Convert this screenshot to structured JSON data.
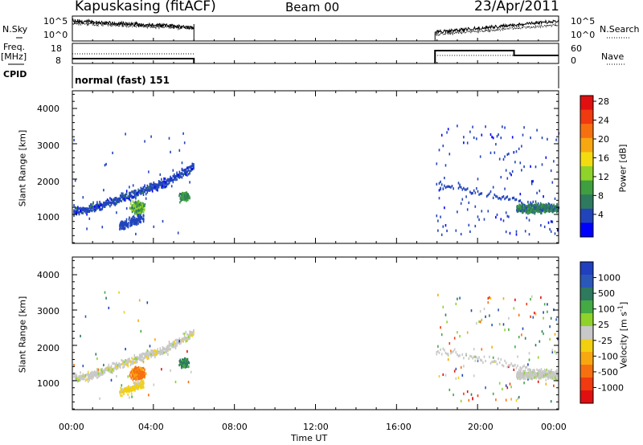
{
  "header": {
    "station": "Kapuskasing (fitACF)",
    "beam": "Beam 00",
    "date": "23/Apr/2011"
  },
  "strips": {
    "nsky_label": "N.Sky",
    "nsearch_label": "N.Search",
    "nsky_ticks": [
      "10^5",
      "10^0"
    ],
    "nsearch_ticks": [
      "10^5",
      "10^0"
    ],
    "freq_label_top": "Freq.",
    "freq_label_bottom": "[MHz]",
    "freq_ticks": [
      "18",
      "8"
    ],
    "nave_label": "Nave",
    "nave_ticks": [
      "60",
      "0"
    ],
    "cpid_label": "CPID",
    "cpid_text": "normal (fast) 151"
  },
  "chart_data": [
    {
      "type": "heatmap",
      "name": "power",
      "ylabel": "Slant Range [km]",
      "yticks": [
        1000,
        2000,
        3000,
        4000
      ],
      "ylim": [
        180,
        4500
      ],
      "xlim": [
        0,
        24
      ],
      "colorbar_label": "Power [dB]",
      "colorbar_ticks": [
        "4",
        "8",
        "12",
        "16",
        "20",
        "24",
        "28"
      ],
      "colorbar_colors": [
        "#0000ff",
        "#2244bb",
        "#2e7a5e",
        "#3f9e3f",
        "#8fd22a",
        "#f2dc10",
        "#f7a810",
        "#f77010",
        "#f03a10",
        "#e01010"
      ],
      "data_intervals_hours": [
        [
          0.0,
          6.0
        ],
        [
          17.9,
          24.0
        ]
      ]
    },
    {
      "type": "heatmap",
      "name": "velocity",
      "ylabel": "Slant Range [km]",
      "yticks": [
        1000,
        2000,
        3000,
        4000
      ],
      "ylim": [
        180,
        4500
      ],
      "xlim": [
        0,
        24
      ],
      "xlabel": "Time UT",
      "xticks": [
        "00:00",
        "04:00",
        "08:00",
        "12:00",
        "16:00",
        "20:00",
        "00:00"
      ],
      "colorbar_label": "Velocity [m s^-1]",
      "colorbar_ticks": [
        "1000",
        "500",
        "100",
        "25",
        "-25",
        "-100",
        "-500",
        "-1000"
      ],
      "colorbar_colors": [
        "#2040c0",
        "#2a58b8",
        "#2e7a5e",
        "#44aa44",
        "#8fd22a",
        "#c8c8c8",
        "#f2d010",
        "#f7a810",
        "#f77010",
        "#f03a10",
        "#e01010"
      ],
      "data_intervals_hours": [
        [
          0.0,
          6.0
        ],
        [
          17.9,
          24.0
        ]
      ]
    }
  ]
}
